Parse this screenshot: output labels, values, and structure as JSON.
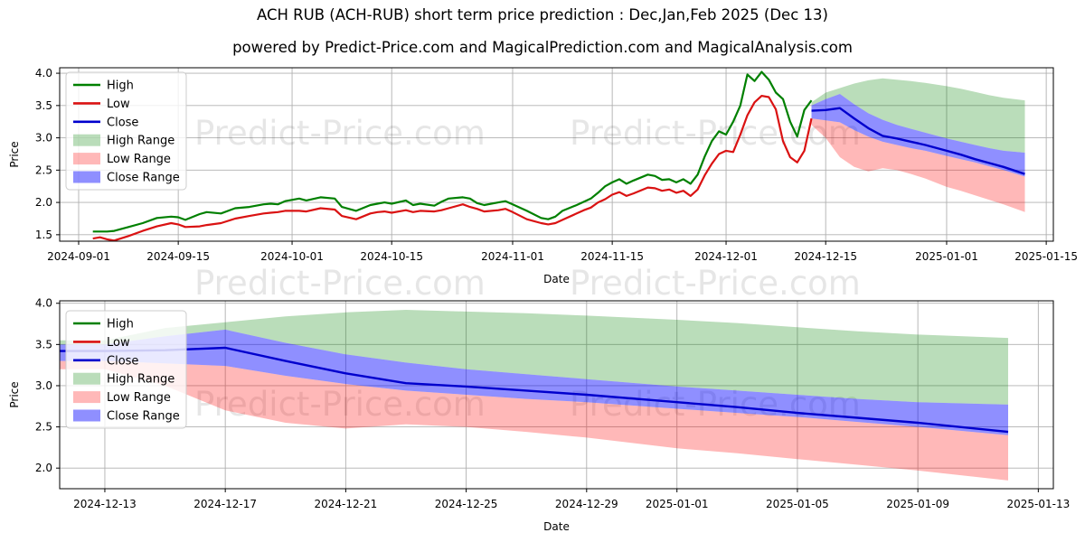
{
  "page": {
    "title": "ACH RUB (ACH-RUB) short term price prediction : Dec,Jan,Feb 2025 (Dec 13)",
    "subtitle": "powered by Predict-Price.com and MagicalPrediction.com and MagicalAnalysis.com",
    "watermark": "Predict-Price.com"
  },
  "colors": {
    "high": "#008000",
    "low": "#da1212",
    "close": "#0000cd",
    "high_range": "rgba(0,128,0,0.27)",
    "low_range": "rgba(255,0,0,0.28)",
    "close_range": "rgba(0,0,255,0.44)",
    "grid": "#b0b0b0",
    "frame": "#000000",
    "text": "#000000",
    "watermark": "#3c3c3c"
  },
  "chart_data": {
    "type": "line",
    "xlabel": "Date",
    "ylabel": "Price",
    "legend": [
      {
        "label": "High",
        "series": "high",
        "swatch": "line"
      },
      {
        "label": "Low",
        "series": "low",
        "swatch": "line"
      },
      {
        "label": "Close",
        "series": "close",
        "swatch": "line"
      },
      {
        "label": "High Range",
        "series": "high_range",
        "swatch": "patch"
      },
      {
        "label": "Low Range",
        "series": "low_range",
        "swatch": "patch"
      },
      {
        "label": "Close Range",
        "series": "close_range",
        "swatch": "patch"
      }
    ],
    "historical": {
      "dates": [
        "2024-09-03",
        "2024-09-04",
        "2024-09-05",
        "2024-09-06",
        "2024-09-08",
        "2024-09-10",
        "2024-09-12",
        "2024-09-14",
        "2024-09-15",
        "2024-09-16",
        "2024-09-18",
        "2024-09-19",
        "2024-09-21",
        "2024-09-23",
        "2024-09-25",
        "2024-09-27",
        "2024-09-28",
        "2024-09-29",
        "2024-09-30",
        "2024-10-02",
        "2024-10-03",
        "2024-10-05",
        "2024-10-07",
        "2024-10-08",
        "2024-10-10",
        "2024-10-12",
        "2024-10-13",
        "2024-10-14",
        "2024-10-15",
        "2024-10-17",
        "2024-10-18",
        "2024-10-19",
        "2024-10-21",
        "2024-10-22",
        "2024-10-23",
        "2024-10-25",
        "2024-10-26",
        "2024-10-27",
        "2024-10-28",
        "2024-10-30",
        "2024-10-31",
        "2024-11-01",
        "2024-11-03",
        "2024-11-05",
        "2024-11-06",
        "2024-11-07",
        "2024-11-08",
        "2024-11-10",
        "2024-11-11",
        "2024-11-12",
        "2024-11-13",
        "2024-11-14",
        "2024-11-15",
        "2024-11-16",
        "2024-11-17",
        "2024-11-18",
        "2024-11-20",
        "2024-11-21",
        "2024-11-22",
        "2024-11-23",
        "2024-11-24",
        "2024-11-25",
        "2024-11-26",
        "2024-11-27",
        "2024-11-28",
        "2024-11-29",
        "2024-11-30",
        "2024-12-01",
        "2024-12-02",
        "2024-12-03",
        "2024-12-04",
        "2024-12-05",
        "2024-12-06",
        "2024-12-07",
        "2024-12-08",
        "2024-12-09",
        "2024-12-10",
        "2024-12-11",
        "2024-12-12",
        "2024-12-13"
      ],
      "high": [
        1.55,
        1.55,
        1.55,
        1.56,
        1.62,
        1.68,
        1.76,
        1.78,
        1.77,
        1.73,
        1.82,
        1.85,
        1.83,
        1.91,
        1.93,
        1.97,
        1.98,
        1.97,
        2.02,
        2.06,
        2.03,
        2.08,
        2.06,
        1.93,
        1.87,
        1.96,
        1.98,
        2.0,
        1.98,
        2.03,
        1.96,
        1.98,
        1.95,
        2.01,
        2.06,
        2.08,
        2.06,
        1.99,
        1.96,
        2.0,
        2.02,
        1.97,
        1.87,
        1.76,
        1.74,
        1.78,
        1.87,
        1.96,
        2.01,
        2.06,
        2.15,
        2.25,
        2.31,
        2.36,
        2.29,
        2.34,
        2.43,
        2.41,
        2.35,
        2.36,
        2.31,
        2.36,
        2.29,
        2.43,
        2.71,
        2.95,
        3.1,
        3.05,
        3.25,
        3.5,
        3.98,
        3.88,
        4.02,
        3.9,
        3.7,
        3.6,
        3.25,
        3.02,
        3.43,
        3.58
      ],
      "low": [
        1.44,
        1.46,
        1.43,
        1.41,
        1.48,
        1.56,
        1.63,
        1.68,
        1.66,
        1.62,
        1.63,
        1.65,
        1.68,
        1.75,
        1.79,
        1.83,
        1.84,
        1.85,
        1.87,
        1.87,
        1.86,
        1.91,
        1.89,
        1.79,
        1.74,
        1.83,
        1.85,
        1.86,
        1.84,
        1.88,
        1.85,
        1.87,
        1.86,
        1.88,
        1.91,
        1.97,
        1.93,
        1.9,
        1.86,
        1.88,
        1.9,
        1.85,
        1.74,
        1.68,
        1.66,
        1.68,
        1.73,
        1.83,
        1.88,
        1.92,
        2.0,
        2.05,
        2.12,
        2.16,
        2.1,
        2.14,
        2.23,
        2.22,
        2.18,
        2.2,
        2.15,
        2.18,
        2.1,
        2.2,
        2.42,
        2.6,
        2.75,
        2.8,
        2.78,
        3.05,
        3.35,
        3.55,
        3.65,
        3.63,
        3.44,
        2.95,
        2.7,
        2.62,
        2.8,
        3.3
      ]
    },
    "prediction": {
      "dates": [
        "2024-12-13",
        "2024-12-15",
        "2024-12-17",
        "2024-12-19",
        "2024-12-21",
        "2024-12-23",
        "2024-12-25",
        "2024-12-27",
        "2024-12-29",
        "2025-01-01",
        "2025-01-03",
        "2025-01-05",
        "2025-01-07",
        "2025-01-09",
        "2025-01-12"
      ],
      "close": [
        3.42,
        3.43,
        3.46,
        3.3,
        3.15,
        3.03,
        2.99,
        2.94,
        2.89,
        2.8,
        2.74,
        2.67,
        2.61,
        2.55,
        2.44
      ],
      "close_upper": [
        3.5,
        3.6,
        3.68,
        3.52,
        3.38,
        3.28,
        3.2,
        3.14,
        3.08,
        2.99,
        2.94,
        2.89,
        2.84,
        2.8,
        2.77
      ],
      "close_lower": [
        3.3,
        3.27,
        3.24,
        3.12,
        3.02,
        2.94,
        2.89,
        2.84,
        2.8,
        2.72,
        2.67,
        2.62,
        2.56,
        2.5,
        2.4
      ],
      "high_upper": [
        3.55,
        3.7,
        3.77,
        3.84,
        3.89,
        3.92,
        3.9,
        3.88,
        3.85,
        3.8,
        3.76,
        3.71,
        3.66,
        3.62,
        3.58
      ],
      "low_lower": [
        3.2,
        3.0,
        2.7,
        2.55,
        2.48,
        2.53,
        2.5,
        2.44,
        2.37,
        2.24,
        2.18,
        2.11,
        2.04,
        1.97,
        1.85
      ]
    },
    "panels": [
      {
        "name": "full",
        "show_historical": true,
        "extend_left": false,
        "xlim": [
          "2024-08-29T08:00",
          "2025-01-16T00:00"
        ],
        "ylim": [
          1.4,
          4.085
        ],
        "xticks": [
          "2024-09-01",
          "2024-09-15",
          "2024-10-01",
          "2024-10-15",
          "2024-11-01",
          "2024-11-15",
          "2024-12-01",
          "2024-12-15",
          "2025-01-01",
          "2025-01-15"
        ],
        "yticks": [
          1.5,
          2.0,
          2.5,
          3.0,
          3.5,
          4.0
        ]
      },
      {
        "name": "forecast",
        "show_historical": false,
        "extend_left": true,
        "xlim": [
          "2024-12-11T12:00",
          "2025-01-13T12:00"
        ],
        "ylim": [
          1.75,
          4.03
        ],
        "xticks": [
          "2024-12-13",
          "2024-12-17",
          "2024-12-21",
          "2024-12-25",
          "2024-12-29",
          "2025-01-01",
          "2025-01-05",
          "2025-01-09",
          "2025-01-13"
        ],
        "yticks": [
          2.0,
          2.5,
          3.0,
          3.5,
          4.0
        ]
      }
    ]
  }
}
